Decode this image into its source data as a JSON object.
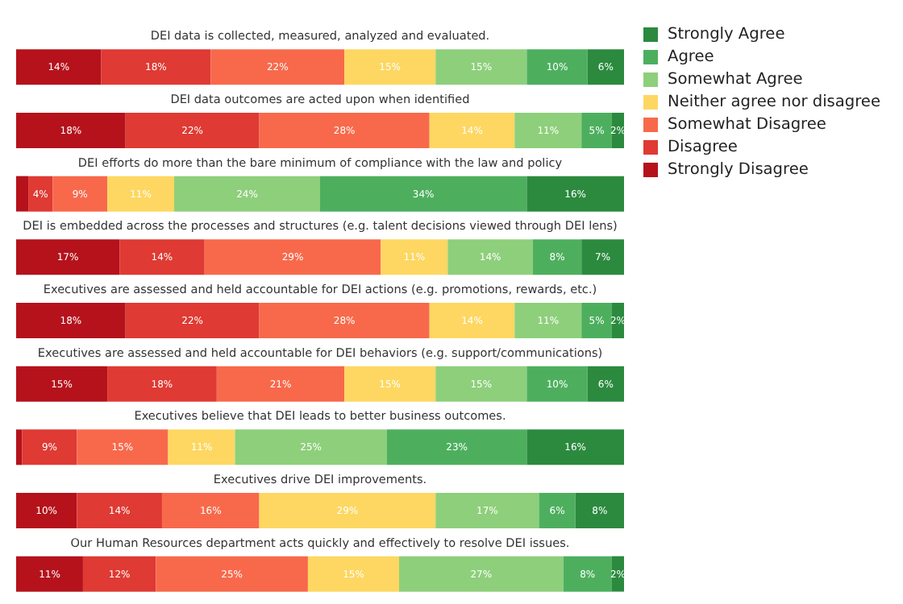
{
  "chart_data": {
    "type": "bar",
    "orientation": "horizontal",
    "stacked": true,
    "legend": "top right",
    "categories": [
      "DEI data is collected, measured, analyzed and evaluated.",
      "DEI data outcomes are acted upon when identified",
      "DEI efforts do more than the bare minimum of compliance with the law and policy",
      "DEI is embedded across the processes and structures (e.g. talent decisions viewed through DEI lens)",
      "Executives are assessed and held accountable for DEI actions (e.g. promotions, rewards, etc.)",
      "Executives are assessed and held accountable for DEI behaviors (e.g. support/communications)",
      "Executives believe that DEI leads to better business outcomes.",
      "Executives drive DEI improvements.",
      "Our Human Resources department acts quickly and effectively to resolve DEI issues."
    ],
    "series": [
      {
        "name": "Strongly Disagree",
        "color": "#b5121b",
        "values": [
          14,
          18,
          2,
          17,
          18,
          15,
          1,
          10,
          11
        ],
        "value_labels": [
          "14%",
          "18%",
          null,
          "17%",
          "18%",
          "15%",
          null,
          "10%",
          "11%"
        ]
      },
      {
        "name": "Disagree",
        "color": "#df3a33",
        "values": [
          18,
          22,
          4,
          14,
          22,
          18,
          9,
          14,
          12
        ],
        "value_labels": [
          "18%",
          "22%",
          "4%",
          "14%",
          "22%",
          "18%",
          "9%",
          "14%",
          "12%"
        ]
      },
      {
        "name": "Somewhat Disagree",
        "color": "#f8694b",
        "values": [
          22,
          28,
          9,
          29,
          28,
          21,
          15,
          16,
          25
        ],
        "value_labels": [
          "22%",
          "28%",
          "9%",
          "29%",
          "28%",
          "21%",
          "15%",
          "16%",
          "25%"
        ]
      },
      {
        "name": "Neither agree nor disagree",
        "color": "#fdd761",
        "values": [
          15,
          14,
          11,
          11,
          14,
          15,
          11,
          29,
          15
        ],
        "value_labels": [
          "15%",
          "14%",
          "11%",
          "11%",
          "14%",
          "15%",
          "11%",
          "29%",
          "15%"
        ]
      },
      {
        "name": "Somewhat Agree",
        "color": "#8ecf7b",
        "values": [
          15,
          11,
          24,
          14,
          11,
          15,
          25,
          17,
          27
        ],
        "value_labels": [
          "15%",
          "11%",
          "24%",
          "14%",
          "11%",
          "15%",
          "25%",
          "17%",
          "27%"
        ]
      },
      {
        "name": "Agree",
        "color": "#4daf5e",
        "values": [
          10,
          5,
          34,
          8,
          5,
          10,
          23,
          6,
          8
        ],
        "value_labels": [
          "10%",
          "5%",
          "34%",
          "8%",
          "5%",
          "10%",
          "23%",
          "6%",
          "8%"
        ]
      },
      {
        "name": "Strongly Agree",
        "color": "#2b8a3e",
        "values": [
          6,
          2,
          16,
          7,
          2,
          6,
          16,
          8,
          2
        ],
        "value_labels": [
          "6%",
          "2%",
          "16%",
          "7%",
          "2%",
          "6%",
          "16%",
          "8%",
          "2%"
        ]
      }
    ]
  }
}
